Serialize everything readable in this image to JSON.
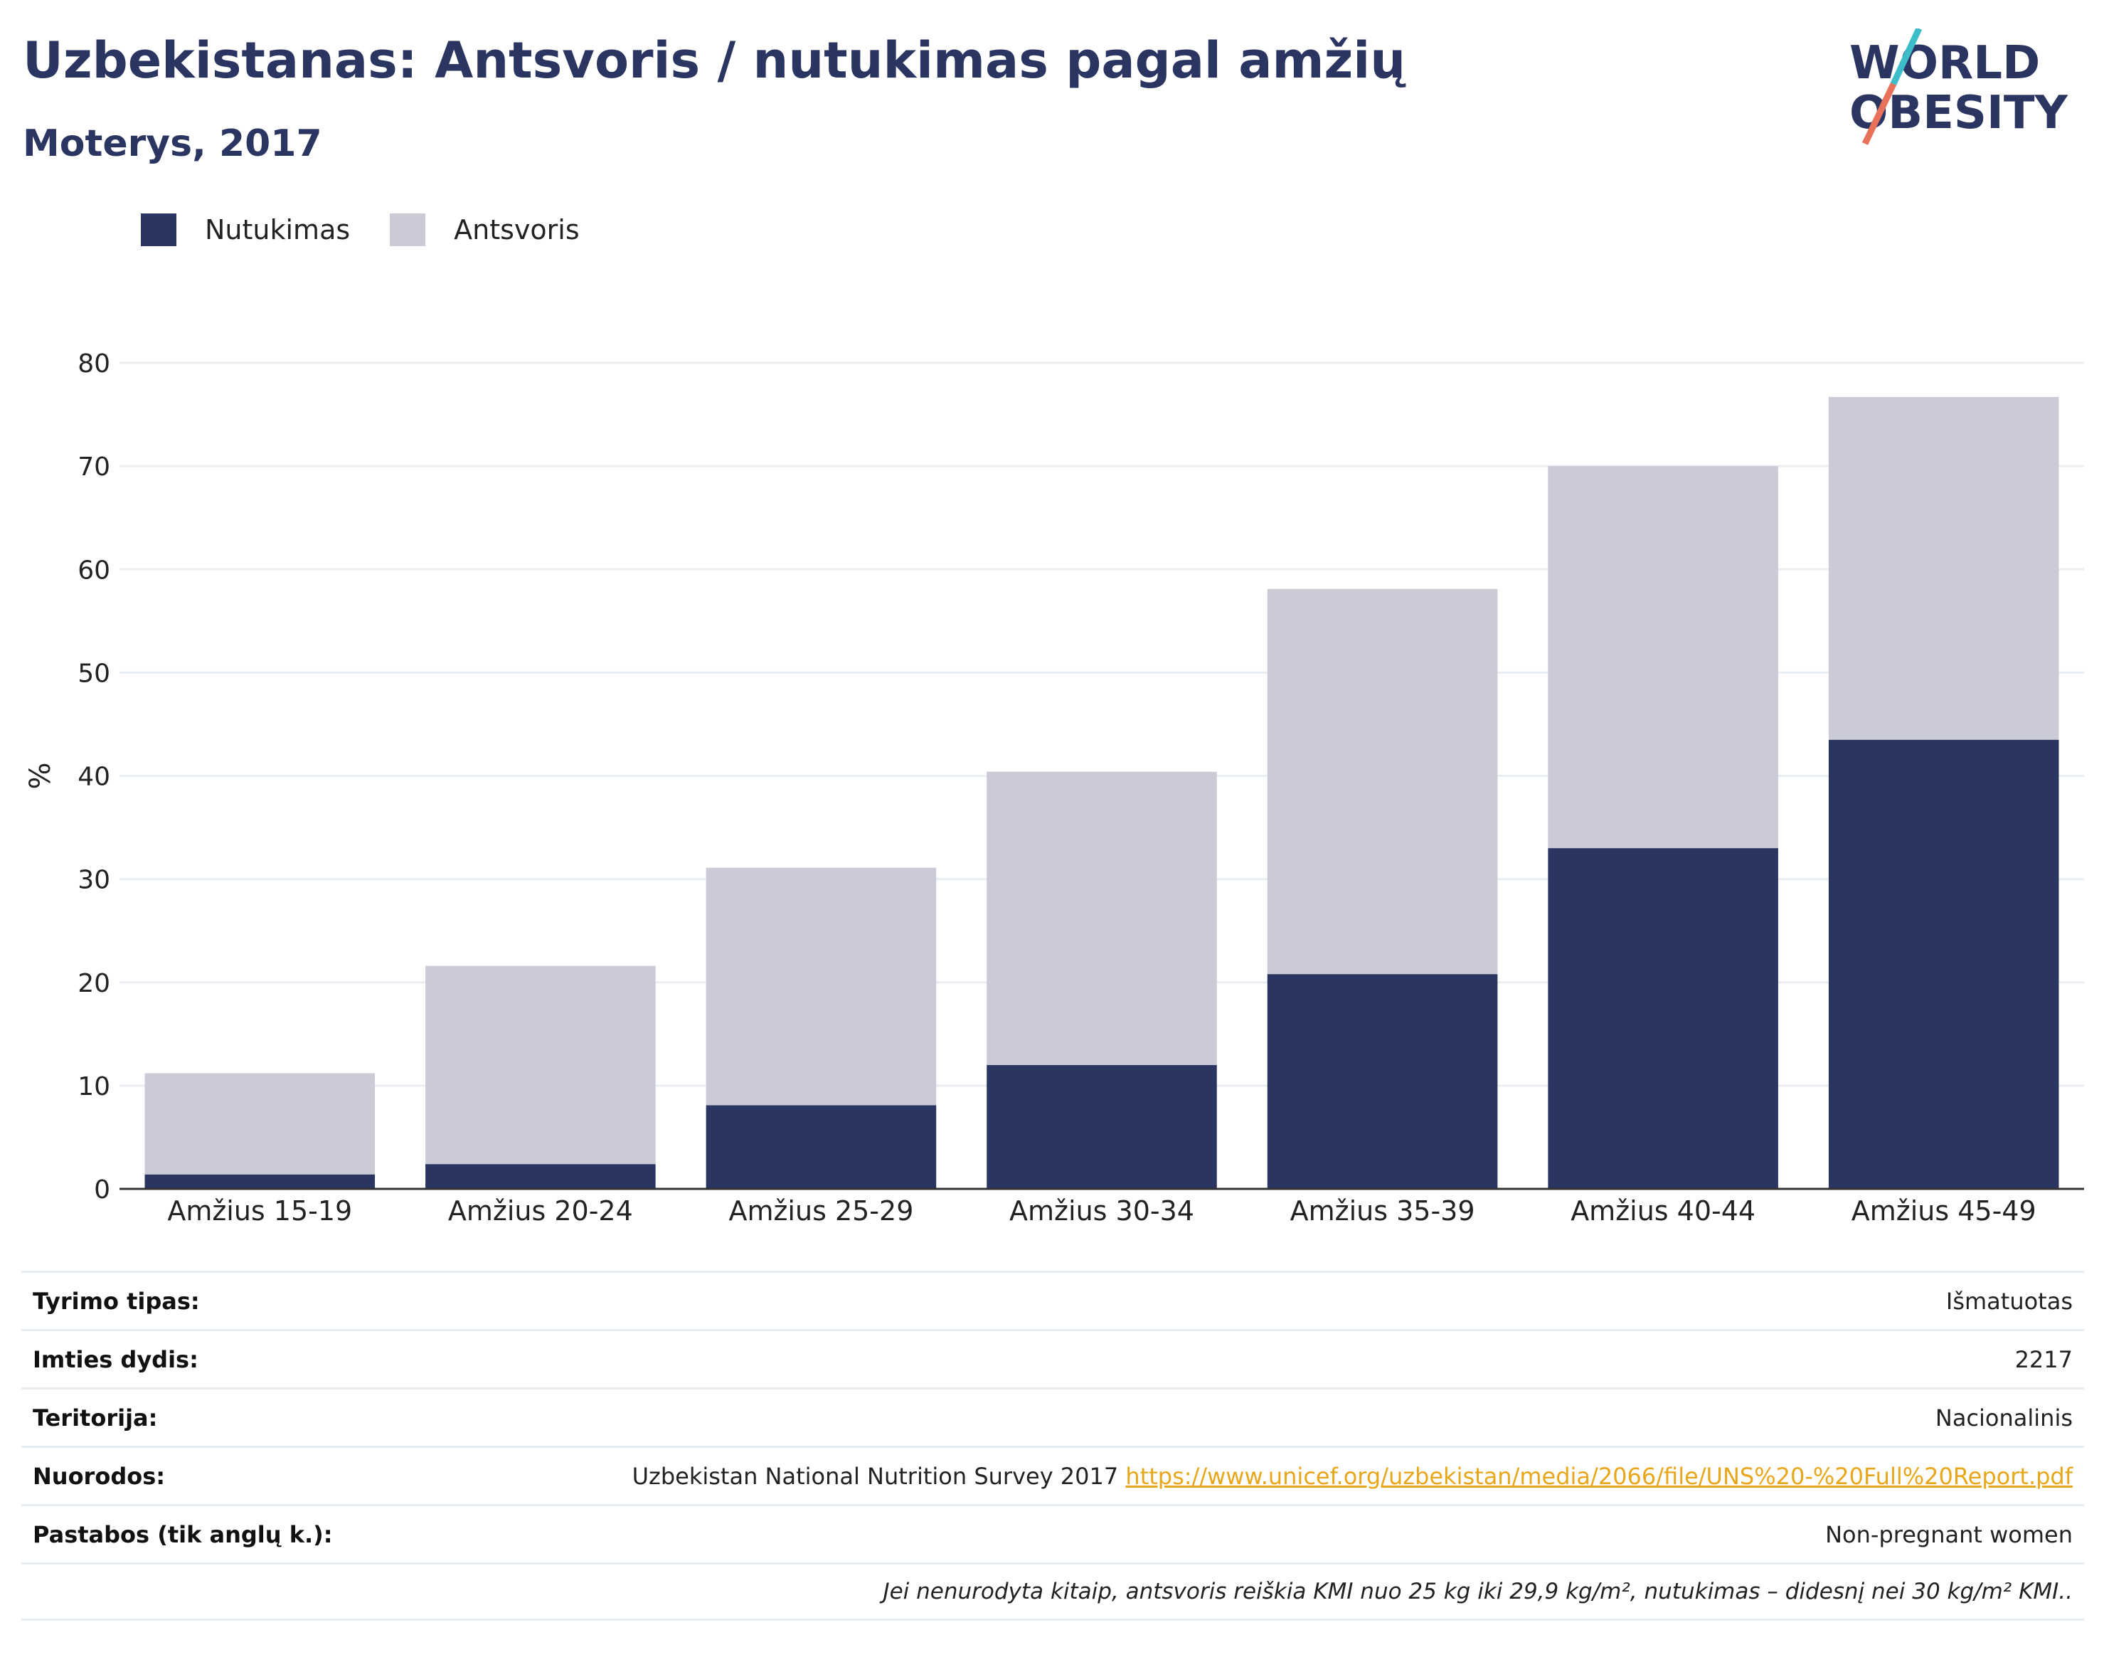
{
  "header": {
    "title": "Uzbekistanas: Antsvoris / nutukimas pagal amžių",
    "subtitle": "Moterys, 2017"
  },
  "logo": {
    "line1": "WORLD",
    "line2": "OBESITY",
    "accent_colors": [
      "#3dbdc8",
      "#e8715a"
    ]
  },
  "chart_data": {
    "type": "bar",
    "stacked": true,
    "categories": [
      "Amžius 15-19",
      "Amžius 20-24",
      "Amžius 25-29",
      "Amžius 30-34",
      "Amžius 35-39",
      "Amžius 40-44",
      "Amžius 45-49"
    ],
    "series": [
      {
        "name": "Nutukimas",
        "color": "#2b3562",
        "values": [
          1.4,
          2.4,
          8.1,
          12.0,
          20.8,
          33.0,
          43.5
        ]
      },
      {
        "name": "Antsvoris",
        "color": "#cacbd6",
        "values": [
          9.8,
          19.2,
          23.0,
          28.4,
          37.3,
          37.0,
          33.2
        ]
      }
    ],
    "ylabel": "%",
    "ylim": [
      0,
      80
    ],
    "yticks": [
      0,
      10,
      20,
      30,
      40,
      50,
      60,
      70,
      80
    ],
    "grid": true,
    "legend": "top-left"
  },
  "info": {
    "rows": [
      {
        "label": "Tyrimo tipas:",
        "value": "Išmatuotas"
      },
      {
        "label": "Imties dydis:",
        "value": "2217"
      },
      {
        "label": "Teritorija:",
        "value": "Nacionalinis"
      },
      {
        "label": "Nuorodos:",
        "value": "Uzbekistan National Nutrition Survey 2017",
        "link": "https://www.unicef.org/uzbekistan/media/2066/file/UNS%20-%20Full%20Report.pdf"
      },
      {
        "label": "Pastabos (tik anglų k.):",
        "value": "Non-pregnant women"
      }
    ],
    "note": "Jei nenurodyta kitaip, antsvoris reiškia KMI nuo 25 kg iki 29,9 kg/m², nutukimas – didesnį nei 30 kg/m² KMI.."
  }
}
